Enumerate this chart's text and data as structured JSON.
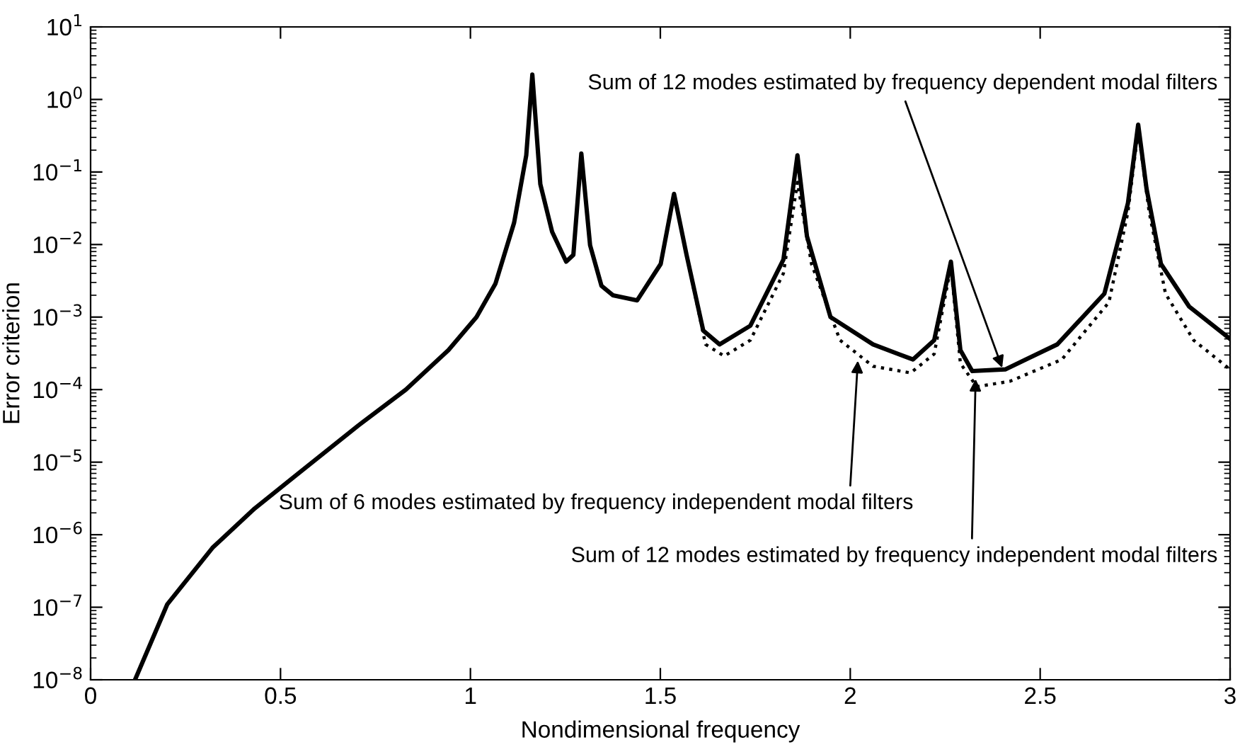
{
  "chart_data": {
    "type": "line",
    "xlabel": "Nondimensional frequency",
    "ylabel": "Error criterion",
    "log": "y",
    "xlim": [
      0,
      3
    ],
    "xticks": [
      0,
      0.5,
      1,
      1.5,
      2,
      2.5,
      3
    ],
    "ylim": [
      1e-08,
      10
    ],
    "yticks": [
      {
        "value": 1e-08,
        "label": "10$^{−8}$"
      },
      {
        "value": 1e-07,
        "label": "10$^{−7}$"
      },
      {
        "value": 1e-06,
        "label": "10$^{−6}$"
      },
      {
        "value": 1e-05,
        "label": "10$^{−5}$"
      },
      {
        "value": 0.0001,
        "label": "10$^{−4}$"
      },
      {
        "value": 0.001,
        "label": "10$^{−3}$"
      },
      {
        "value": 0.01,
        "label": "10$^{−2}$"
      },
      {
        "value": 0.1,
        "label": "10$^{−1}$"
      },
      {
        "value": 1,
        "label": "10$^{0}$"
      },
      {
        "value": 10,
        "label": "10$^{1}$"
      }
    ],
    "grid": false,
    "legend": false,
    "series": [
      {
        "color": "#000000",
        "line_style": "solid",
        "x": [
          0.117,
          0.202,
          0.321,
          0.432,
          0.544,
          0.705,
          0.83,
          0.942,
          1.016,
          1.066,
          1.115,
          1.147,
          1.163,
          1.184,
          1.215,
          1.252,
          1.271,
          1.292,
          1.315,
          1.345,
          1.375,
          1.439,
          1.501,
          1.536,
          1.569,
          1.613,
          1.656,
          1.737,
          1.824,
          1.861,
          1.886,
          1.948,
          2.06,
          2.165,
          2.221,
          2.265,
          2.29,
          2.321,
          2.408,
          2.545,
          2.669,
          2.731,
          2.758,
          2.78,
          2.818,
          2.892,
          3.0
        ],
        "values": [
          1e-08,
          1.1e-07,
          6.6e-07,
          2.3e-06,
          6.8e-06,
          3.2e-05,
          0.0001,
          0.00035,
          0.001,
          0.0029,
          0.02,
          0.17,
          2.2,
          0.068,
          0.015,
          0.0058,
          0.0072,
          0.18,
          0.0098,
          0.0027,
          0.002,
          0.0017,
          0.0054,
          0.05,
          0.0072,
          0.00065,
          0.00042,
          0.00076,
          0.0062,
          0.17,
          0.013,
          0.001,
          0.00042,
          0.00026,
          0.00048,
          0.0058,
          0.00035,
          0.00018,
          0.00019,
          0.00042,
          0.0021,
          0.037,
          0.45,
          0.059,
          0.0054,
          0.0014,
          0.0005
        ]
      },
      {
        "color": "#000000",
        "line_style": "dotted",
        "x": [
          1.501,
          1.536,
          1.569,
          1.619,
          1.668,
          1.737,
          1.824,
          1.861,
          1.898,
          1.973,
          2.06,
          2.159,
          2.221,
          2.265,
          2.29,
          2.333,
          2.42,
          2.557,
          2.681,
          2.731,
          2.758,
          2.787,
          2.83,
          2.904,
          3.0
        ],
        "values": [
          0.0054,
          0.05,
          0.0072,
          0.00042,
          0.00029,
          0.00048,
          0.004,
          0.072,
          0.0054,
          0.00048,
          0.00021,
          0.00017,
          0.00031,
          0.005,
          0.00023,
          0.00011,
          0.00013,
          0.00026,
          0.0016,
          0.028,
          0.38,
          0.028,
          0.0021,
          0.00048,
          0.00019
        ]
      }
    ],
    "annotations": [
      {
        "text": "Sum of 12 modes estimated by frequency dependent modal filters",
        "x": 2.4,
        "y": 0.0002
      },
      {
        "text": "Sum of 6 modes estimated by frequency independent modal filters",
        "x": 2.02,
        "y": 0.00025
      },
      {
        "text": "Sum of 12 modes estimated by frequency independent modal filters",
        "x": 2.33,
        "y": 0.00014
      }
    ]
  }
}
